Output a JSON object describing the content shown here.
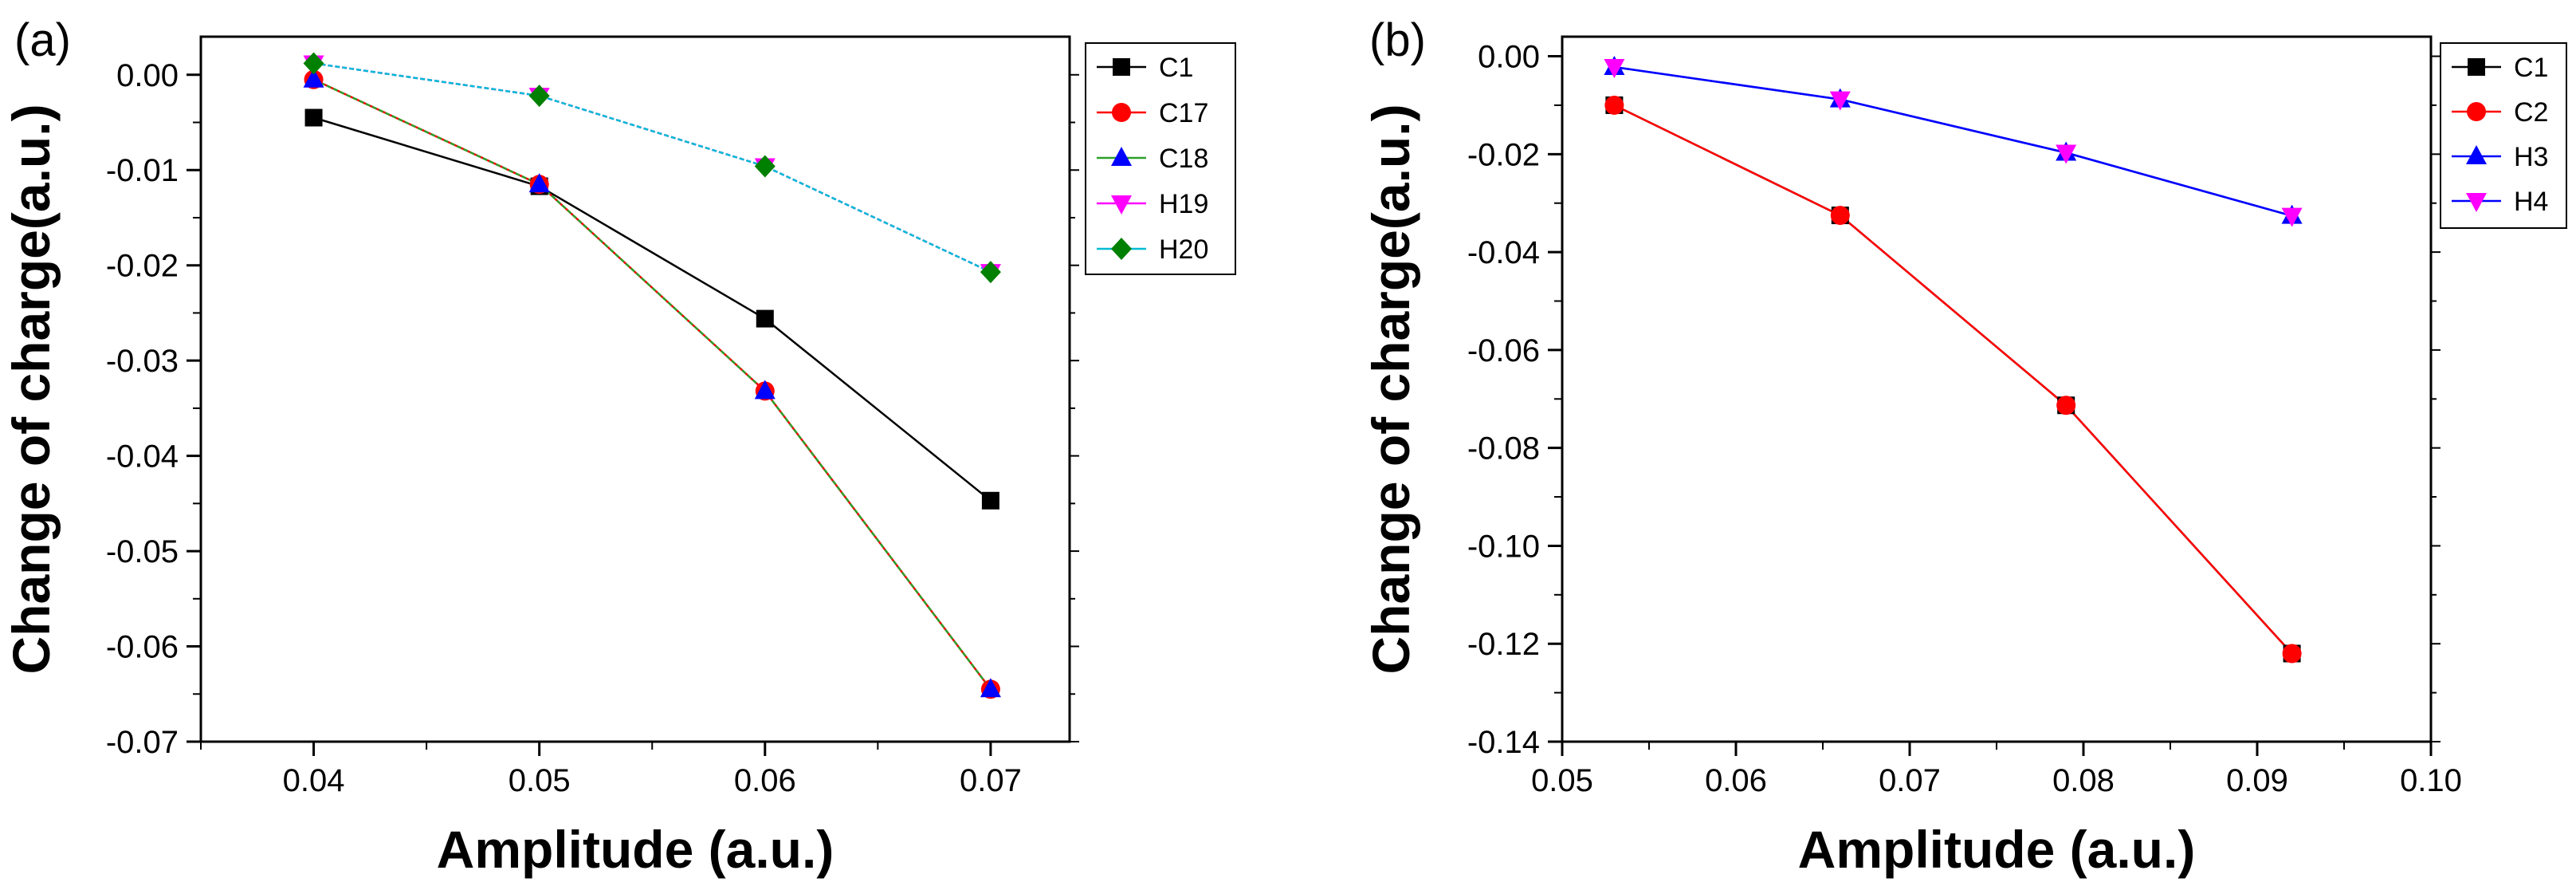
{
  "chart_data": [
    {
      "panel": "(a)",
      "type": "line",
      "xlabel": "Amplitude (a.u.)",
      "ylabel": "Change of charge(a.u.)",
      "xlim": [
        0.035,
        0.0735
      ],
      "ylim": [
        -0.07,
        0.004
      ],
      "x_ticks": [
        "0.04",
        "0.05",
        "0.06",
        "0.07"
      ],
      "y_ticks": [
        "0.00",
        "-0.01",
        "-0.02",
        "-0.03",
        "-0.04",
        "-0.05",
        "-0.06",
        "-0.07"
      ],
      "x": [
        0.04,
        0.05,
        0.06,
        0.07
      ],
      "series": [
        {
          "name": "C1",
          "color": "#000000",
          "marker": "square",
          "values": [
            -0.0045,
            -0.0117,
            -0.0256,
            -0.0447
          ]
        },
        {
          "name": "C17",
          "color": "#ff0000",
          "marker": "circle",
          "values": [
            -0.0005,
            -0.0115,
            -0.0332,
            -0.0645
          ]
        },
        {
          "name": "C18",
          "color": "#0000ff",
          "marker": "triangle-up",
          "values": [
            -0.0005,
            -0.0115,
            -0.0332,
            -0.0645
          ]
        },
        {
          "name": "H19",
          "color": "#ff00ff",
          "marker": "triangle-down",
          "values": [
            0.0012,
            -0.0022,
            -0.0096,
            -0.0207
          ]
        },
        {
          "name": "H20",
          "color": "#008000",
          "marker": "diamond",
          "values": [
            0.0012,
            -0.0022,
            -0.0096,
            -0.0207
          ]
        }
      ],
      "line_colors": [
        "#000000",
        "#ff0000",
        "#2ca02c",
        "#ff00ff",
        "#00bcd4"
      ],
      "legend_position": "top-right",
      "grid": false
    },
    {
      "panel": "(b)",
      "type": "line",
      "xlabel": "Amplitude (a.u.)",
      "ylabel": "Change of charge(a.u.)",
      "xlim": [
        0.05,
        0.1
      ],
      "ylim": [
        -0.14,
        0.004
      ],
      "x_ticks": [
        "0.05",
        "0.06",
        "0.07",
        "0.08",
        "0.09",
        "0.10"
      ],
      "y_ticks": [
        "0.00",
        "-0.02",
        "-0.04",
        "-0.06",
        "-0.08",
        "-0.10",
        "-0.12",
        "-0.14"
      ],
      "x": [
        0.053,
        0.066,
        0.079,
        0.092
      ],
      "series": [
        {
          "name": "C1",
          "color": "#000000",
          "marker": "square",
          "values": [
            -0.01,
            -0.0325,
            -0.0713,
            -0.122
          ]
        },
        {
          "name": "C2",
          "color": "#ff0000",
          "marker": "circle",
          "values": [
            -0.01,
            -0.0325,
            -0.0713,
            -0.122
          ]
        },
        {
          "name": "H3",
          "color": "#0000ff",
          "marker": "triangle-up",
          "values": [
            -0.0022,
            -0.0088,
            -0.0197,
            -0.0326
          ]
        },
        {
          "name": "H4",
          "color": "#ff00ff",
          "marker": "triangle-down",
          "values": [
            -0.0022,
            -0.0088,
            -0.0197,
            -0.0326
          ]
        }
      ],
      "line_colors": [
        "#000000",
        "#ff0000",
        "#0000ff",
        "#0000ff"
      ],
      "legend_position": "top-right",
      "grid": false
    }
  ]
}
